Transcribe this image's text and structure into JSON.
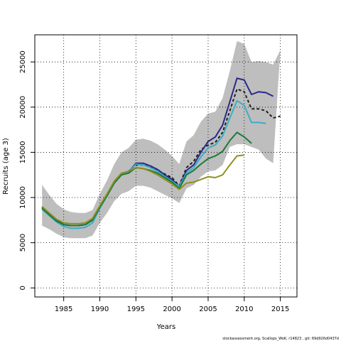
{
  "chart_data": {
    "type": "line",
    "title": "",
    "xlabel": "Years",
    "ylabel": "Recruits (age 3)",
    "xlim": [
      1981,
      2017.3
    ],
    "ylim": [
      -1000,
      28000
    ],
    "xticks": [
      1985,
      1990,
      1995,
      2000,
      2005,
      2010,
      2015
    ],
    "yticks": [
      0,
      5000,
      10000,
      15000,
      20000,
      25000
    ],
    "grid": true,
    "legend": "none",
    "footer": "stockassessment.org, Scallops_WoK, r14823 , git: 69d926d0437d",
    "band": {
      "color": "#bebebe",
      "x": [
        1982,
        1983,
        1984,
        1985,
        1986,
        1987,
        1988,
        1989,
        1990,
        1991,
        1992,
        1993,
        1994,
        1995,
        1996,
        1997,
        1998,
        1999,
        2000,
        2001,
        2002,
        2003,
        2004,
        2005,
        2006,
        2007,
        2008,
        2009,
        2010,
        2011,
        2012,
        2013,
        2014,
        2015
      ],
      "upper": [
        11400,
        10300,
        9300,
        8700,
        8400,
        8300,
        8300,
        8600,
        10400,
        11900,
        13700,
        15000,
        15500,
        16400,
        16500,
        16300,
        15900,
        15300,
        14600,
        13700,
        16200,
        16900,
        18400,
        19300,
        19500,
        21000,
        24000,
        27300,
        27000,
        25000,
        25100,
        25000,
        24700,
        26300
      ],
      "lower": [
        6900,
        6500,
        6000,
        5600,
        5500,
        5500,
        5500,
        5800,
        7200,
        8300,
        9600,
        10400,
        10700,
        11300,
        11300,
        11100,
        10700,
        10300,
        9900,
        9400,
        11000,
        11400,
        12300,
        12900,
        13000,
        13600,
        15600,
        15900,
        15900,
        15600,
        15300,
        14300,
        13800,
        null
      ]
    },
    "series": [
      {
        "color": "#1f1f1f",
        "dash": "dashed",
        "x": [
          1982,
          1983,
          1984,
          1985,
          1986,
          1987,
          1988,
          1989,
          1990,
          1991,
          1992,
          1993,
          1994,
          1995,
          1996,
          1997,
          1998,
          1999,
          2000,
          2001,
          2002,
          2003,
          2004,
          2005,
          2006,
          2007,
          2008,
          2009,
          2010,
          2011,
          2012,
          2013,
          2014,
          2015
        ],
        "values": [
          8900,
          8200,
          7600,
          7000,
          6900,
          6900,
          7000,
          7500,
          9000,
          10300,
          11700,
          12600,
          12900,
          13600,
          13600,
          13400,
          13000,
          12600,
          12200,
          11300,
          13300,
          14000,
          15300,
          15800,
          16100,
          17200,
          19600,
          22000,
          21700,
          19800,
          19800,
          19600,
          18800,
          19000
        ]
      },
      {
        "color": "#2a2a8a",
        "dash": "solid",
        "x": [
          1982,
          1983,
          1984,
          1985,
          1986,
          1987,
          1988,
          1989,
          1990,
          1991,
          1992,
          1993,
          1994,
          1995,
          1996,
          1997,
          1998,
          1999,
          2000,
          2001,
          2002,
          2003,
          2004,
          2005,
          2006,
          2007,
          2008,
          2009,
          2010,
          2011,
          2012,
          2013,
          2014
        ],
        "values": [
          8800,
          8200,
          7500,
          7000,
          6900,
          6900,
          7000,
          7500,
          8900,
          10300,
          11700,
          12600,
          12800,
          13800,
          13800,
          13500,
          13100,
          12500,
          12000,
          11200,
          13000,
          13600,
          15000,
          16200,
          16700,
          18000,
          20600,
          23200,
          23000,
          21400,
          21700,
          21600,
          21200
        ]
      },
      {
        "color": "#3aaec6",
        "dash": "solid",
        "x": [
          1982,
          1983,
          1984,
          1985,
          1986,
          1987,
          1988,
          1989,
          1990,
          1991,
          1992,
          1993,
          1994,
          1995,
          1996,
          1997,
          1998,
          1999,
          2000,
          2001,
          2002,
          2003,
          2004,
          2005,
          2006,
          2007,
          2008,
          2009,
          2010,
          2011,
          2012,
          2013
        ],
        "values": [
          8700,
          8000,
          7300,
          6800,
          6600,
          6600,
          6700,
          7200,
          8800,
          10200,
          11600,
          12600,
          12800,
          13700,
          13600,
          13300,
          12900,
          12300,
          11800,
          11200,
          12700,
          13300,
          14500,
          15500,
          15800,
          16800,
          18800,
          20700,
          20200,
          18300,
          18300,
          18200
        ]
      },
      {
        "color": "#1a7a3a",
        "dash": "solid",
        "x": [
          1982,
          1983,
          1984,
          1985,
          1986,
          1987,
          1988,
          1989,
          1990,
          1991,
          1992,
          1993,
          1994,
          1995,
          1996,
          1997,
          1998,
          1999,
          2000,
          2001,
          2002,
          2003,
          2004,
          2005,
          2006,
          2007,
          2008,
          2009,
          2010,
          2011
        ],
        "values": [
          8800,
          8100,
          7400,
          7000,
          6900,
          6900,
          7000,
          7500,
          8900,
          10200,
          11600,
          12500,
          12700,
          13300,
          13200,
          13000,
          12700,
          12200,
          11700,
          11000,
          12500,
          13000,
          13700,
          14300,
          14600,
          15100,
          16300,
          17200,
          16700,
          16000
        ]
      },
      {
        "color": "#8f8f22",
        "dash": "solid",
        "x": [
          1982,
          1983,
          1984,
          1985,
          1986,
          1987,
          1988,
          1989,
          1990,
          1991,
          1992,
          1993,
          1994,
          1995,
          1996,
          1997,
          1998,
          1999,
          2000,
          2001,
          2002,
          2003,
          2004,
          2005,
          2006,
          2007,
          2008,
          2009,
          2010
        ],
        "values": [
          9000,
          8300,
          7600,
          7200,
          7100,
          7100,
          7200,
          7700,
          9100,
          10400,
          11800,
          12700,
          12900,
          13300,
          13200,
          12900,
          12500,
          12000,
          11500,
          10900,
          11600,
          11700,
          12000,
          12300,
          12200,
          12500,
          13600,
          14600,
          14700
        ]
      }
    ]
  }
}
